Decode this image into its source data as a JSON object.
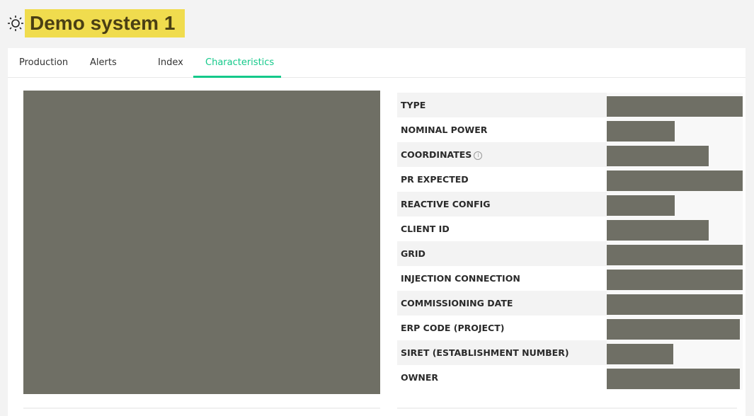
{
  "header": {
    "title": "Demo system 1",
    "icon": "sun-icon"
  },
  "tabs": [
    {
      "label": "Production"
    },
    {
      "label": "Alerts"
    },
    {
      "label": "Index"
    },
    {
      "label": "Characteristics",
      "active": true
    }
  ],
  "accent_color": "#14c98a",
  "characteristics": [
    {
      "label": "TYPE"
    },
    {
      "label": "NOMINAL POWER"
    },
    {
      "label": "COORDINATES",
      "info": true
    },
    {
      "label": "PR EXPECTED"
    },
    {
      "label": "REACTIVE CONFIG"
    },
    {
      "label": "CLIENT ID"
    },
    {
      "label": "GRID"
    },
    {
      "label": "INJECTION CONNECTION"
    },
    {
      "label": "COMMISSIONING DATE"
    },
    {
      "label": "ERP CODE (PROJECT)"
    },
    {
      "label": "SIRET (ESTABLISHMENT NUMBER)"
    },
    {
      "label": "OWNER"
    }
  ]
}
